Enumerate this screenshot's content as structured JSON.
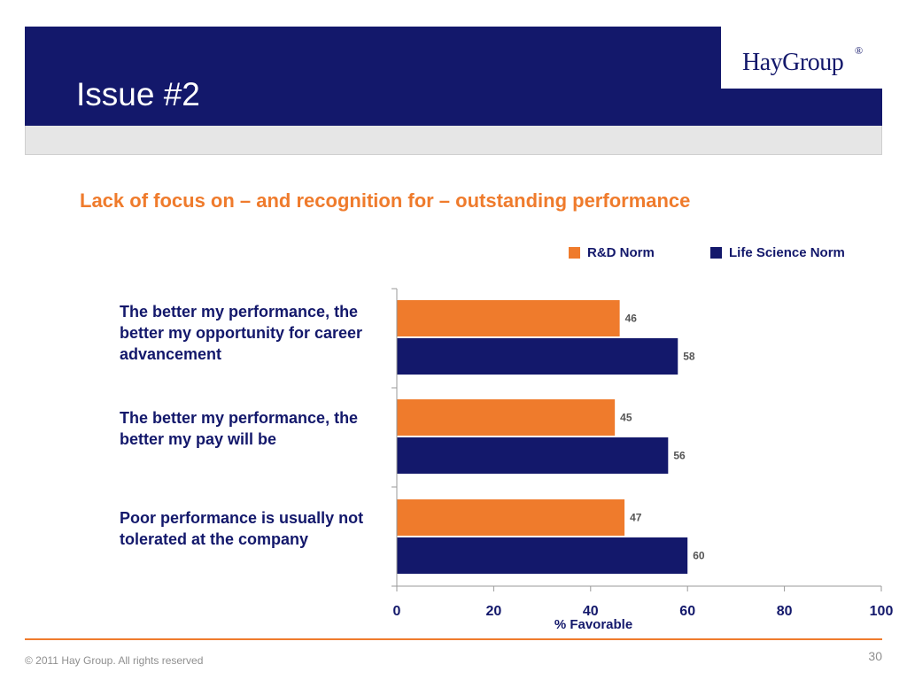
{
  "header": {
    "title": "Issue #2",
    "logo_text": "HayGroup",
    "logo_mark": "®"
  },
  "chart_data": {
    "type": "bar",
    "orientation": "horizontal",
    "title": "Lack of focus on – and recognition for – outstanding performance",
    "xlabel": "% Favorable",
    "xlim": [
      0,
      100
    ],
    "x_ticks": [
      "0",
      "20",
      "40",
      "60",
      "80",
      "100"
    ],
    "categories": [
      "The better my performance, the better my opportunity for career advancement",
      "The better my performance, the better my pay will be",
      "Poor performance is usually not tolerated at the company"
    ],
    "series": [
      {
        "name": "R&D Norm",
        "color": "#ef7b2c",
        "values": [
          46,
          45,
          47
        ]
      },
      {
        "name": "Life Science Norm",
        "color": "#13186b",
        "values": [
          58,
          56,
          60
        ]
      }
    ],
    "legend_position": "top-right",
    "grid": false,
    "data_labels": true
  },
  "footer": {
    "copyright": "© 2011 Hay Group. All rights reserved",
    "page_number": "30"
  }
}
